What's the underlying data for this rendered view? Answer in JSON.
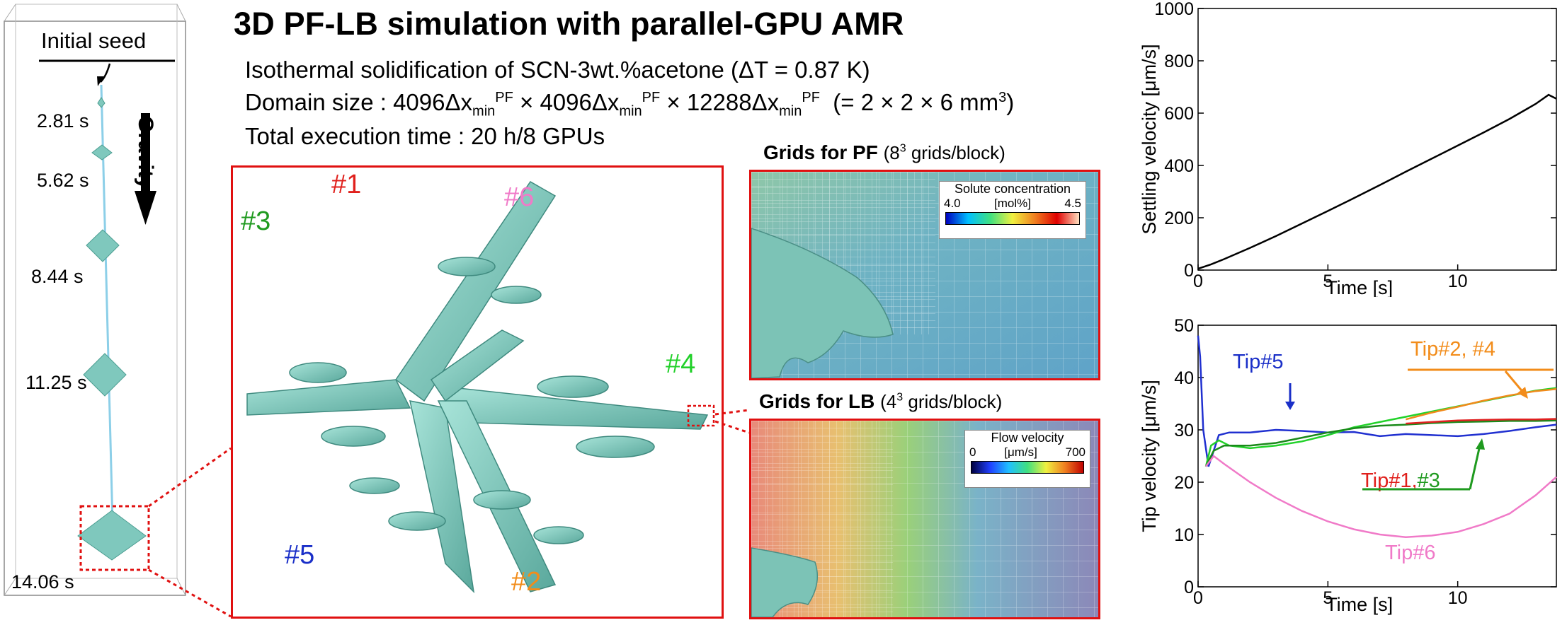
{
  "title": "3D PF-LB simulation with parallel-GPU AMR",
  "info": {
    "line1": "Isothermal solidification of SCN-3wt.%acetone (ΔT = 0.87 K)",
    "line2_prefix": "Domain size : ",
    "line2_dims": [
      "4096",
      "4096",
      "12288"
    ],
    "line2_unit": "Δx",
    "line2_sub": "min",
    "line2_sup": "PF",
    "line2_suffix": "(= 2 × 2 × 6 mm",
    "line2_suffix_sup": "3",
    "line2_end": ")",
    "line3": "Total execution time : 20 h/8 GPUs"
  },
  "domain_panel": {
    "initial_seed": "Initial seed",
    "gravity": "Gravity",
    "times": [
      "2.81 s",
      "5.62 s",
      "8.44 s",
      "11.25 s",
      "14.06 s"
    ]
  },
  "arms": {
    "a1": {
      "label": "#1",
      "color": "#e0201c"
    },
    "a2": {
      "label": "#2",
      "color": "#f28c1a"
    },
    "a3": {
      "label": "#3",
      "color": "#1f9a1f"
    },
    "a4": {
      "label": "#4",
      "color": "#22d02a"
    },
    "a5": {
      "label": "#5",
      "color": "#1a2fc8"
    },
    "a6": {
      "label": "#6",
      "color": "#f07ac8"
    }
  },
  "grids": {
    "pf_title": "Grids for PF",
    "pf_note_pre": "(8",
    "pf_note_sup": "3",
    "pf_note_post": " grids/block)",
    "lb_title": "Grids for LB",
    "lb_note_pre": "(4",
    "lb_note_sup": "3",
    "lb_note_post": " grids/block)",
    "pf_cbar": {
      "title": "Solute concentration",
      "min": "4.0",
      "unit": "[mol%]",
      "max": "4.5"
    },
    "lb_cbar": {
      "title": "Flow velocity",
      "min": "0",
      "unit": "[μm/s]",
      "max": "700"
    }
  },
  "chart_data": [
    {
      "type": "line",
      "title": "",
      "xlabel": "Time [s]",
      "ylabel": "Settling velocity [μm/s]",
      "xlim": [
        0,
        13.8
      ],
      "ylim": [
        0,
        1000
      ],
      "xticks": [
        0,
        5,
        10
      ],
      "yticks": [
        0,
        200,
        400,
        600,
        800,
        1000
      ],
      "series": [
        {
          "color": "#000000",
          "x": [
            0,
            0.5,
            1,
            2,
            3,
            4,
            5,
            6,
            7,
            8,
            9,
            10,
            11,
            12,
            13,
            13.5,
            13.8
          ],
          "y": [
            5,
            22,
            42,
            85,
            130,
            178,
            226,
            275,
            325,
            376,
            426,
            476,
            526,
            578,
            635,
            670,
            655
          ]
        }
      ]
    },
    {
      "type": "line",
      "title": "",
      "xlabel": "Time [s]",
      "ylabel": "Tip velocity [μm/s]",
      "xlim": [
        0,
        13.8
      ],
      "ylim": [
        0,
        50
      ],
      "xticks": [
        0,
        5,
        10
      ],
      "yticks": [
        0,
        10,
        20,
        30,
        40,
        50
      ],
      "annotations": {
        "tip24": {
          "text": "Tip#2, #4",
          "color": "#f28c1a"
        },
        "tip5": {
          "text": "Tip#5",
          "color": "#1a2fc8"
        },
        "tip1": {
          "text": "Tip#1,",
          "color": "#e0201c"
        },
        "tip3": {
          "text": "#3",
          "color": "#1f9a1f"
        },
        "tip6": {
          "text": "Tip#6",
          "color": "#f07ac8"
        }
      },
      "series": [
        {
          "color": "#2030d0",
          "x": [
            0,
            0.08,
            0.2,
            0.4,
            0.6,
            0.8,
            1.2,
            2,
            3,
            4,
            5,
            6,
            7,
            8,
            9,
            10,
            11,
            12,
            13,
            13.8
          ],
          "y": [
            48,
            44,
            30,
            23,
            26,
            29,
            29.5,
            29.5,
            30,
            29.8,
            29.5,
            29.6,
            28.8,
            29.2,
            29,
            28.8,
            29.2,
            29.8,
            30.5,
            31
          ]
        },
        {
          "color": "#22d22a",
          "x": [
            0.3,
            0.5,
            0.8,
            1.2,
            2,
            3,
            4,
            5,
            6,
            7,
            8,
            9,
            10,
            11,
            12,
            13,
            13.8
          ],
          "y": [
            23,
            27,
            28,
            27,
            26.5,
            27,
            27.8,
            29,
            30.5,
            31.5,
            32.5,
            33.5,
            34.5,
            35.5,
            36.5,
            37.5,
            38
          ]
        },
        {
          "color": "#f08a1a",
          "x": [
            8,
            9,
            10,
            11,
            12,
            13,
            13.8
          ],
          "y": [
            32,
            33.3,
            34.4,
            35.6,
            36.6,
            37.4,
            37.8
          ]
        },
        {
          "color": "#1a8a1a",
          "x": [
            0.3,
            0.6,
            1,
            2,
            3,
            4,
            5,
            6,
            7,
            8,
            9,
            10,
            11,
            12,
            13,
            13.8
          ],
          "y": [
            23,
            26,
            27,
            27,
            27.5,
            28.5,
            29.5,
            30.3,
            30.8,
            31,
            31.3,
            31.5,
            31.6,
            31.7,
            31.7,
            31.8
          ]
        },
        {
          "color": "#e02020",
          "x": [
            8,
            9,
            10,
            11,
            12,
            13,
            13.8
          ],
          "y": [
            31.2,
            31.5,
            31.8,
            31.9,
            32,
            32,
            32.1
          ]
        },
        {
          "color": "#f07ac8",
          "x": [
            0.3,
            0.6,
            1,
            2,
            3,
            4,
            5,
            6,
            7,
            8,
            9,
            10,
            11,
            12,
            13,
            13.8
          ],
          "y": [
            23,
            25,
            23.5,
            20,
            17,
            14.5,
            12.5,
            11,
            10,
            9.5,
            9.8,
            10.5,
            12,
            14,
            17.5,
            21
          ]
        }
      ]
    }
  ]
}
